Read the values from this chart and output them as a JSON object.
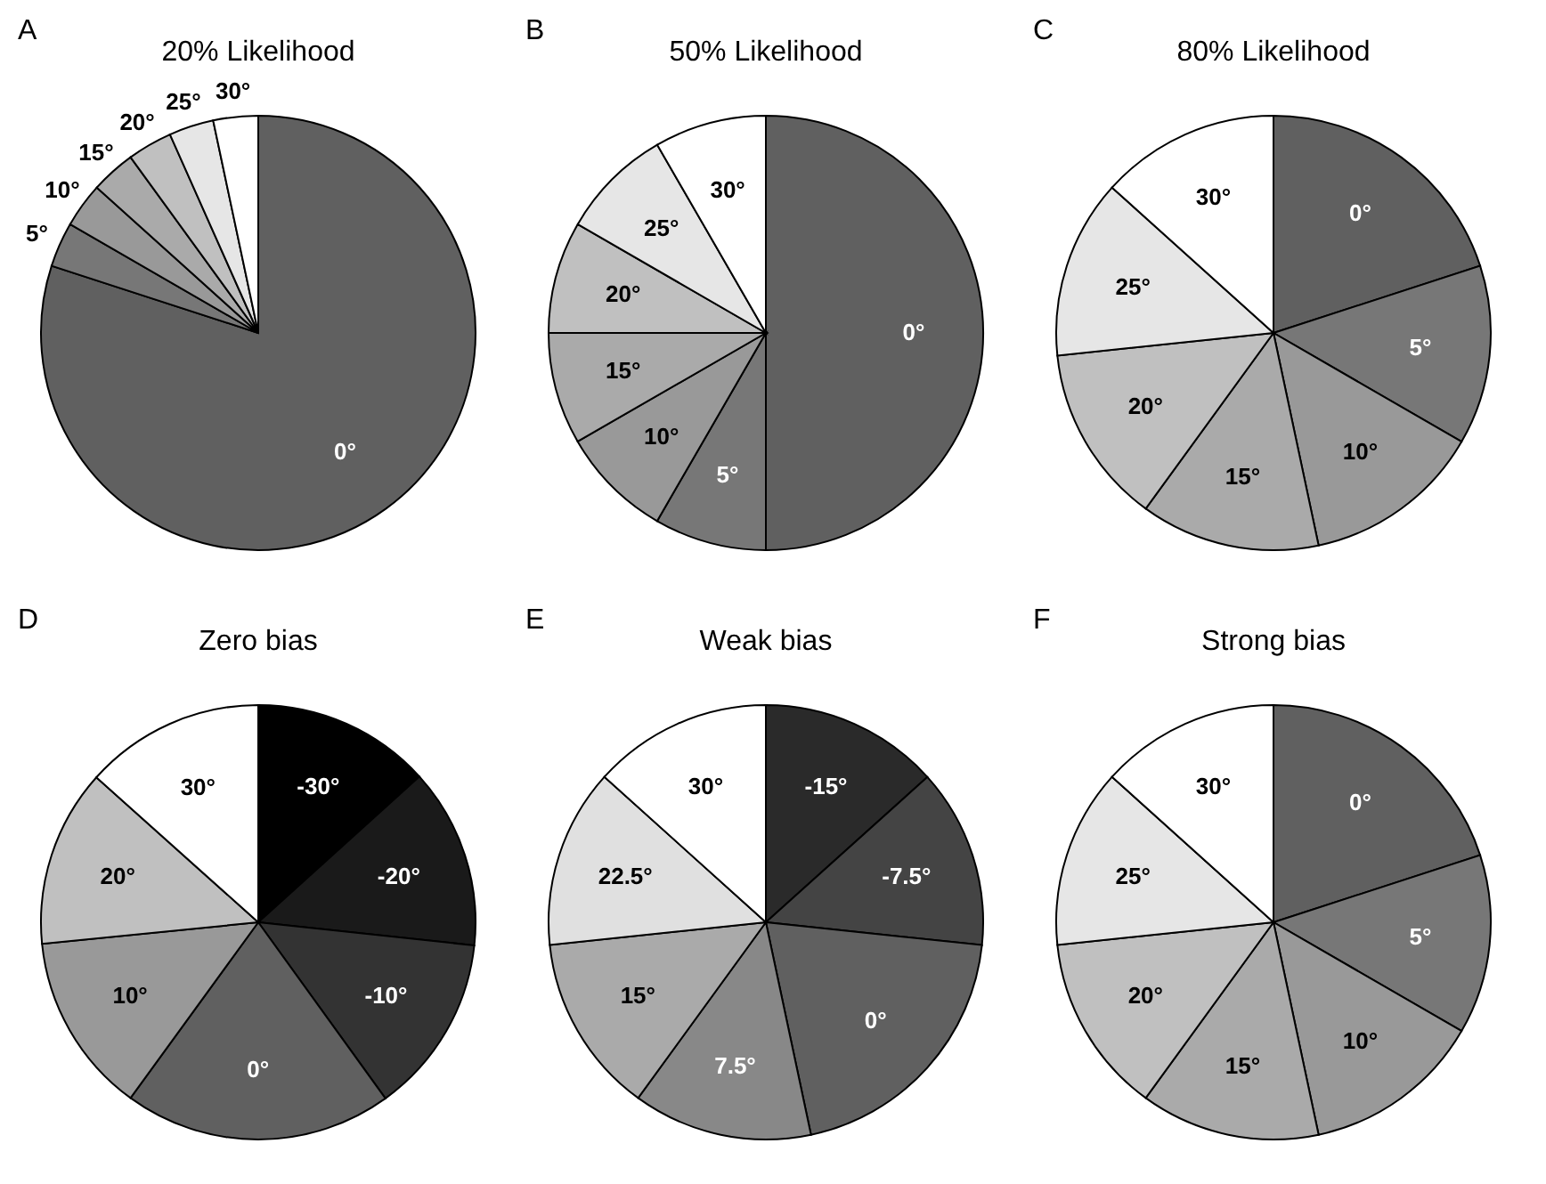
{
  "chart_data": [
    {
      "type": "pie",
      "title": "20% Likelihood",
      "annotations": [
        "A"
      ],
      "categories": [
        "0°",
        "5°",
        "10°",
        "15°",
        "20°",
        "25°",
        "30°"
      ],
      "values": [
        80,
        3.34,
        3.33,
        3.33,
        3.34,
        3.33,
        3.33
      ],
      "colors": [
        "#606060",
        "#777777",
        "#999999",
        "#aaaaaa",
        "#c0c0c0",
        "#e6e6e6",
        "#ffffff"
      ]
    },
    {
      "type": "pie",
      "title": "50% Likelihood",
      "annotations": [
        "B"
      ],
      "categories": [
        "0°",
        "5°",
        "10°",
        "15°",
        "20°",
        "25°",
        "30°"
      ],
      "values": [
        50,
        8.34,
        8.33,
        8.33,
        8.34,
        8.33,
        8.33
      ],
      "colors": [
        "#606060",
        "#777777",
        "#999999",
        "#aaaaaa",
        "#c0c0c0",
        "#e6e6e6",
        "#ffffff"
      ]
    },
    {
      "type": "pie",
      "title": "80% Likelihood",
      "annotations": [
        "C"
      ],
      "categories": [
        "0°",
        "5°",
        "10°",
        "15°",
        "20°",
        "25°",
        "30°"
      ],
      "values": [
        20,
        13.34,
        13.33,
        13.33,
        13.34,
        13.33,
        13.33
      ],
      "colors": [
        "#606060",
        "#777777",
        "#999999",
        "#aaaaaa",
        "#c0c0c0",
        "#e6e6e6",
        "#ffffff"
      ]
    },
    {
      "type": "pie",
      "title": "Zero bias",
      "annotations": [
        "D"
      ],
      "categories": [
        "-30°",
        "-20°",
        "-10°",
        "0°",
        "10°",
        "20°",
        "30°"
      ],
      "values": [
        13.3,
        13.4,
        13.35,
        19.95,
        13.42,
        13.2,
        13.38
      ],
      "colors": [
        "#000000",
        "#1a1a1a",
        "#333333",
        "#606060",
        "#999999",
        "#c0c0c0",
        "#ffffff"
      ]
    },
    {
      "type": "pie",
      "title": "Weak bias",
      "annotations": [
        "E"
      ],
      "categories": [
        "-15°",
        "-7.5°",
        "0°",
        "7.5°",
        "15°",
        "22.5°",
        "30°"
      ],
      "values": [
        13.34,
        13.33,
        20,
        13.33,
        13.34,
        13.33,
        13.33
      ],
      "colors": [
        "#2a2a2a",
        "#444444",
        "#606060",
        "#888888",
        "#aaaaaa",
        "#e0e0e0",
        "#ffffff"
      ]
    },
    {
      "type": "pie",
      "title": "Strong bias",
      "annotations": [
        "F"
      ],
      "categories": [
        "0°",
        "5°",
        "10°",
        "15°",
        "20°",
        "25°",
        "30°"
      ],
      "values": [
        20,
        13.34,
        13.33,
        13.33,
        13.34,
        13.33,
        13.33
      ],
      "colors": [
        "#606060",
        "#777777",
        "#999999",
        "#aaaaaa",
        "#c0c0c0",
        "#e6e6e6",
        "#ffffff"
      ]
    }
  ]
}
